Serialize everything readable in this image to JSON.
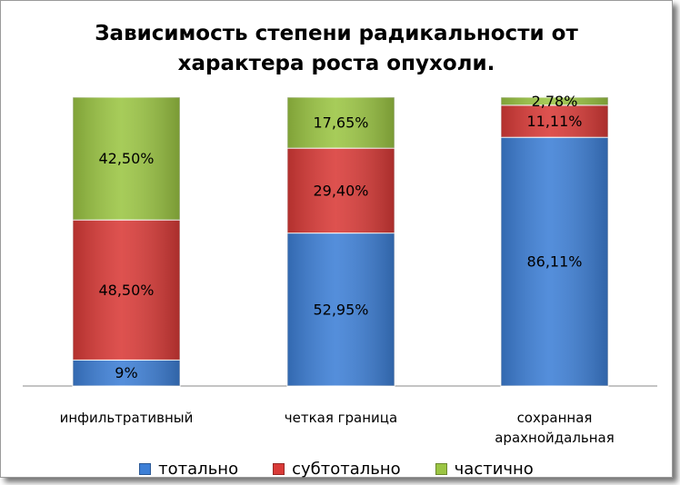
{
  "chart_data": {
    "type": "bar",
    "stacked": true,
    "title_lines": [
      "Зависимость степени радикальности от",
      "характера роста опухоли."
    ],
    "categories": [
      [
        "инфильтративный"
      ],
      [
        "четкая граница"
      ],
      [
        "сохранная",
        "арахнойдальная"
      ]
    ],
    "series": [
      {
        "name": "тотально",
        "color": "#3d7fd6",
        "values": [
          9,
          52.95,
          86.11
        ],
        "labels": [
          "9%",
          "52,95%",
          "86,11%"
        ]
      },
      {
        "name": "субтотально",
        "color": "#d93a37",
        "values": [
          48.5,
          29.4,
          11.11
        ],
        "labels": [
          "48,50%",
          "29,40%",
          "11,11%"
        ]
      },
      {
        "name": "частично",
        "color": "#9bc543",
        "values": [
          42.5,
          17.65,
          2.78
        ],
        "labels": [
          "42,50%",
          "17,65%",
          "2,78%"
        ]
      }
    ],
    "ylim": [
      0,
      100
    ],
    "legend": "bottom",
    "grid": false
  }
}
